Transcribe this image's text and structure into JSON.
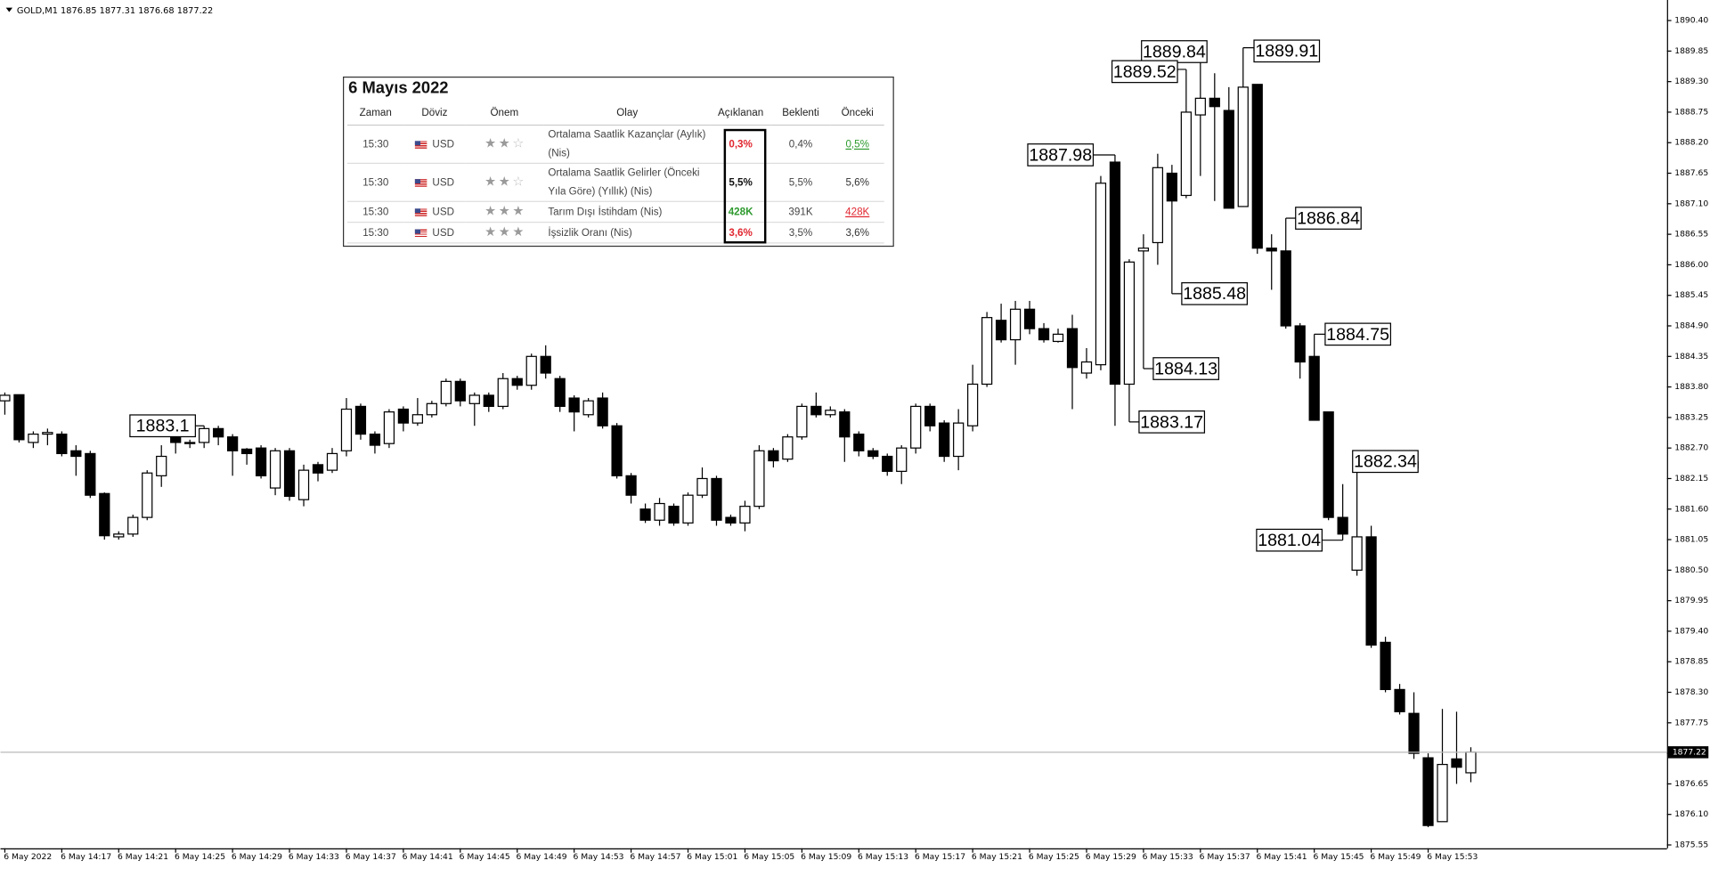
{
  "chart_data": {
    "type": "candlestick",
    "symbol": "GOLD,M1",
    "ohlc_readout": [
      1876.85,
      1877.31,
      1876.68,
      1877.22
    ],
    "categories": [
      "6 May 2022",
      null,
      null,
      null,
      "6 May 14:17",
      null,
      null,
      null,
      "6 May 14:21",
      null,
      null,
      null,
      "6 May 14:25",
      null,
      null,
      null,
      "6 May 14:29",
      null,
      null,
      null,
      "6 May 14:33",
      null,
      null,
      null,
      "6 May 14:37",
      null,
      null,
      null,
      "6 May 14:41",
      null,
      null,
      null,
      "6 May 14:45",
      null,
      null,
      null,
      "6 May 14:49",
      null,
      null,
      null,
      "6 May 14:53",
      null,
      null,
      null,
      "6 May 14:57",
      null,
      null,
      null,
      "6 May 15:01",
      null,
      null,
      null,
      "6 May 15:05",
      null,
      null,
      null,
      "6 May 15:09",
      null,
      null,
      null,
      "6 May 15:13",
      null,
      null,
      null,
      "6 May 15:17",
      null,
      null,
      null,
      "6 May 15:21",
      null,
      null,
      null,
      "6 May 15:25",
      null,
      null,
      null,
      "6 May 15:29",
      null,
      null,
      null,
      "6 May 15:33",
      null,
      null,
      null,
      "6 May 15:37",
      null,
      null,
      null,
      "6 May 15:41",
      null,
      null,
      null,
      "6 May 15:45",
      null,
      null,
      null,
      "6 May 15:49",
      null,
      null,
      null,
      "6 May 15:53",
      null,
      null,
      null
    ],
    "open": [
      1883.55,
      1883.66,
      1882.8,
      1882.95,
      1882.95,
      1882.65,
      1882.6,
      1881.88,
      1881.1,
      1881.15,
      1881.45,
      1882.2,
      1883.1,
      1882.78,
      1882.8,
      1883.05,
      1882.9,
      1882.68,
      1882.7,
      1881.98,
      1882.65,
      1881.77,
      1882.4,
      1882.3,
      1882.65,
      1883.45,
      1882.95,
      1882.78,
      1883.4,
      1883.15,
      1883.3,
      1883.5,
      1883.9,
      1883.5,
      1883.65,
      1883.45,
      1883.95,
      1883.83,
      1884.35,
      1883.95,
      1883.6,
      1883.3,
      1883.6,
      1883.1,
      1882.2,
      1881.6,
      1881.4,
      1881.65,
      1881.35,
      1881.85,
      1882.15,
      1881.45,
      1881.35,
      1881.65,
      1882.65,
      1882.5,
      1882.9,
      1883.45,
      1883.3,
      1883.35,
      1882.95,
      1882.65,
      1882.55,
      1882.28,
      1882.7,
      1883.45,
      1883.15,
      1882.55,
      1883.1,
      1883.85,
      1885.0,
      1884.65,
      1885.2,
      1884.85,
      1884.62,
      1884.85,
      1884.05,
      1884.2,
      1887.85,
      1883.85,
      1886.25,
      1886.4,
      1887.65,
      1887.25,
      1888.7,
      1889.0,
      1888.78,
      1887.05,
      1889.25,
      1886.3,
      1886.25,
      1884.9,
      1884.35,
      1883.35,
      1881.45,
      1880.5,
      1881.1,
      1879.2,
      1878.35,
      1877.92,
      1877.12,
      1875.97,
      1877.1,
      1876.85
    ],
    "high": [
      1883.7,
      1883.66,
      1883.0,
      1883.05,
      1883.0,
      1882.75,
      1882.65,
      1881.9,
      1881.2,
      1881.5,
      1882.3,
      1882.75,
      1883.2,
      1882.85,
      1883.1,
      1883.1,
      1882.95,
      1882.7,
      1882.75,
      1882.7,
      1882.7,
      1882.4,
      1882.45,
      1882.7,
      1883.6,
      1883.5,
      1883.0,
      1883.4,
      1883.45,
      1883.6,
      1883.55,
      1883.95,
      1883.95,
      1883.7,
      1883.7,
      1884.05,
      1884.0,
      1884.4,
      1884.55,
      1884.0,
      1883.65,
      1883.6,
      1883.7,
      1883.15,
      1882.25,
      1881.7,
      1881.8,
      1881.7,
      1881.9,
      1882.35,
      1882.2,
      1881.5,
      1881.75,
      1882.75,
      1882.7,
      1882.95,
      1883.5,
      1883.7,
      1883.45,
      1883.4,
      1883.0,
      1882.7,
      1882.6,
      1882.75,
      1883.5,
      1883.5,
      1883.2,
      1883.4,
      1884.2,
      1885.15,
      1885.3,
      1885.35,
      1885.35,
      1884.95,
      1884.85,
      1885.1,
      1884.5,
      1887.6,
      1887.98,
      1886.1,
      1886.55,
      1888.0,
      1887.8,
      1889.52,
      1889.84,
      1889.45,
      1889.2,
      1889.91,
      1889.25,
      1886.55,
      1886.84,
      1884.95,
      1884.75,
      1883.35,
      1882.05,
      1882.34,
      1881.3,
      1879.3,
      1878.45,
      1878.3,
      1877.2,
      1878.0,
      1877.95,
      1877.31
    ],
    "low": [
      1883.3,
      1882.8,
      1882.7,
      1882.75,
      1882.55,
      1882.2,
      1881.8,
      1881.05,
      1881.05,
      1881.1,
      1881.4,
      1882.0,
      1882.6,
      1882.7,
      1882.7,
      1882.75,
      1882.2,
      1882.4,
      1882.15,
      1881.85,
      1881.75,
      1881.65,
      1882.1,
      1882.25,
      1882.55,
      1882.85,
      1882.6,
      1882.7,
      1883.0,
      1883.1,
      1883.25,
      1883.45,
      1883.45,
      1883.1,
      1883.35,
      1883.4,
      1883.75,
      1883.75,
      1883.95,
      1883.35,
      1883.0,
      1883.25,
      1883.05,
      1882.15,
      1881.7,
      1881.35,
      1881.3,
      1881.3,
      1881.3,
      1881.8,
      1881.3,
      1881.3,
      1881.2,
      1881.6,
      1882.35,
      1882.45,
      1882.85,
      1883.25,
      1883.25,
      1882.45,
      1882.55,
      1882.5,
      1882.2,
      1882.05,
      1882.6,
      1883.0,
      1882.45,
      1882.3,
      1883.0,
      1883.8,
      1884.6,
      1884.2,
      1884.75,
      1884.6,
      1884.6,
      1883.4,
      1883.95,
      1884.1,
      1883.1,
      1883.17,
      1884.13,
      1886.0,
      1885.48,
      1887.2,
      1887.6,
      1887.15,
      1887.02,
      1887.05,
      1886.2,
      1885.55,
      1884.85,
      1883.95,
      1883.2,
      1881.4,
      1881.04,
      1880.4,
      1879.1,
      1878.3,
      1877.9,
      1877.1,
      1875.87,
      1875.97,
      1876.65,
      1876.68
    ],
    "close": [
      1883.65,
      1882.85,
      1882.95,
      1882.98,
      1882.6,
      1882.55,
      1881.85,
      1881.12,
      1881.15,
      1881.45,
      1882.25,
      1882.55,
      1882.8,
      1882.8,
      1883.05,
      1882.9,
      1882.65,
      1882.6,
      1882.2,
      1882.65,
      1881.83,
      1882.3,
      1882.25,
      1882.6,
      1883.4,
      1882.95,
      1882.75,
      1883.35,
      1883.15,
      1883.3,
      1883.5,
      1883.9,
      1883.55,
      1883.65,
      1883.45,
      1883.95,
      1883.83,
      1884.35,
      1884.05,
      1883.45,
      1883.35,
      1883.55,
      1883.1,
      1882.2,
      1881.85,
      1881.4,
      1881.7,
      1881.35,
      1881.85,
      1882.15,
      1881.4,
      1881.35,
      1881.65,
      1882.65,
      1882.47,
      1882.9,
      1883.45,
      1883.3,
      1883.38,
      1882.9,
      1882.65,
      1882.55,
      1882.28,
      1882.7,
      1883.45,
      1883.1,
      1882.55,
      1883.15,
      1883.85,
      1885.05,
      1884.65,
      1885.2,
      1884.85,
      1884.65,
      1884.75,
      1884.15,
      1884.25,
      1887.47,
      1883.85,
      1886.05,
      1886.3,
      1887.75,
      1887.15,
      1888.75,
      1889.0,
      1888.85,
      1887.02,
      1889.2,
      1886.3,
      1886.25,
      1884.9,
      1884.25,
      1883.2,
      1881.45,
      1881.15,
      1881.1,
      1879.15,
      1878.35,
      1877.95,
      1877.2,
      1875.9,
      1877.0,
      1876.95,
      1877.22
    ],
    "up_color": "#ffffff",
    "down_color": "#000000",
    "ylim": [
      1875.49,
      1890.77
    ],
    "yticks": [
      {
        "value": 1890.4,
        "label": "1890.40"
      },
      1889.85,
      {
        "value": 1889.3,
        "label": "1889.30"
      },
      1888.75,
      {
        "value": 1888.2,
        "label": "1888.20"
      },
      1887.65,
      {
        "value": 1887.1,
        "label": "1887.10"
      },
      1886.55,
      {
        "value": 1886.0,
        "label": "1886.00"
      },
      1885.45,
      {
        "value": 1884.9,
        "label": "1884.90"
      },
      1884.35,
      {
        "value": 1883.8,
        "label": "1883.80"
      },
      1883.25,
      {
        "value": 1882.7,
        "label": "1882.70"
      },
      1882.15,
      {
        "value": 1881.6,
        "label": "1881.60"
      },
      1881.05,
      {
        "value": 1880.5,
        "label": "1880.50"
      },
      1879.95,
      {
        "value": 1879.4,
        "label": "1879.40"
      },
      1878.85,
      {
        "value": 1878.3,
        "label": "1878.30"
      },
      1877.75,
      {
        "value": 1877.2,
        "label": "1877.20"
      },
      1876.65,
      {
        "value": 1876.1,
        "label": "1876.10"
      },
      1875.55
    ],
    "annotations": [
      1889.84,
      1889.52,
      1889.91,
      1887.98,
      1886.84,
      1885.48,
      1884.75,
      1884.13,
      1883.1,
      1883.17,
      1882.34,
      1881.04
    ],
    "grid": false
  },
  "events_table": {
    "title": "6 Mayıs 2022",
    "headers": [
      "Zaman",
      "Döviz",
      "Önem",
      "Olay",
      "Açıklanan",
      "Beklenti",
      "Önceki"
    ],
    "rows": [
      {
        "time": "15:30",
        "currency": "USD",
        "importance": 2,
        "event": "Ortalama Saatlik Kazançlar (Aylık) (Nis)",
        "actual": "0,3%",
        "forecast": "0,4%",
        "previous": "0,5%",
        "actual_color": "#e0262f",
        "previous_color": "#2e9a2e"
      },
      {
        "time": "15:30",
        "currency": "USD",
        "importance": 2,
        "event": "Ortalama Saatlik Gelirler (Önceki Yıla Göre) (Yıllık) (Nis)",
        "actual": "5,5%",
        "forecast": "5,5%",
        "previous": "5,6%",
        "actual_color": "#111111",
        "previous_color": "#333333"
      },
      {
        "time": "15:30",
        "currency": "USD",
        "importance": 3,
        "event": "Tarım Dışı İstihdam (Nis)",
        "actual": "428K",
        "forecast": "391K",
        "previous": "428K",
        "actual_color": "#2e9a2e",
        "previous_color": "#e0262f"
      },
      {
        "time": "15:30",
        "currency": "USD",
        "importance": 3,
        "event": "İşsizlik Oranı (Nis)",
        "actual": "3,6%",
        "forecast": "3,5%",
        "previous": "3,6%",
        "actual_color": "#e0262f",
        "previous_color": "#333333"
      }
    ]
  }
}
